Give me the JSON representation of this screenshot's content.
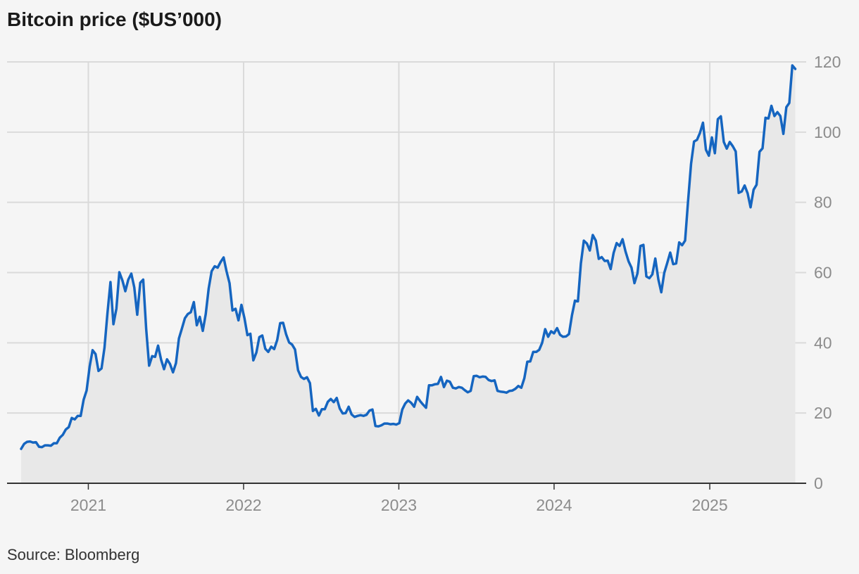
{
  "title": "Bitcoin price ($US’000)",
  "source": "Source: Bloomberg",
  "colors": {
    "line": "#1565c0",
    "area": "#e8e8e8",
    "grid": "#dadada",
    "axis": "#333333",
    "tick": "#8c8c8c",
    "background": "#f5f5f5"
  },
  "chart_data": {
    "type": "area",
    "title": "Bitcoin price ($US’000)",
    "xlabel": "",
    "ylabel": "",
    "ylim": [
      0,
      120
    ],
    "yticks": [
      0,
      20,
      40,
      60,
      80,
      100,
      120
    ],
    "y_axis_side": "right",
    "xticks": [
      "2021",
      "2022",
      "2023",
      "2024",
      "2025"
    ],
    "xlim": [
      "2020-07-27",
      "2025-07-27"
    ],
    "grid": true,
    "series": [
      {
        "x": [
          "2020-07-27",
          "2020-08-03",
          "2020-08-10",
          "2020-08-17",
          "2020-08-24",
          "2020-08-31",
          "2020-09-07",
          "2020-09-14",
          "2020-09-21",
          "2020-09-28",
          "2020-10-05",
          "2020-10-12",
          "2020-10-19",
          "2020-10-26",
          "2020-11-02",
          "2020-11-09",
          "2020-11-16",
          "2020-11-23",
          "2020-11-30",
          "2020-12-07",
          "2020-12-14",
          "2020-12-21",
          "2020-12-28",
          "2021-01-04",
          "2021-01-11",
          "2021-01-18",
          "2021-01-25",
          "2021-02-01",
          "2021-02-08",
          "2021-02-15",
          "2021-02-22",
          "2021-03-01",
          "2021-03-08",
          "2021-03-15",
          "2021-03-22",
          "2021-03-29",
          "2021-04-05",
          "2021-04-12",
          "2021-04-19",
          "2021-04-26",
          "2021-05-03",
          "2021-05-10",
          "2021-05-17",
          "2021-05-24",
          "2021-05-31",
          "2021-06-07",
          "2021-06-14",
          "2021-06-21",
          "2021-06-28",
          "2021-07-05",
          "2021-07-12",
          "2021-07-19",
          "2021-07-26",
          "2021-08-02",
          "2021-08-09",
          "2021-08-16",
          "2021-08-23",
          "2021-08-30",
          "2021-09-06",
          "2021-09-13",
          "2021-09-20",
          "2021-09-27",
          "2021-10-04",
          "2021-10-11",
          "2021-10-18",
          "2021-10-25",
          "2021-11-01",
          "2021-11-08",
          "2021-11-15",
          "2021-11-22",
          "2021-11-29",
          "2021-12-06",
          "2021-12-13",
          "2021-12-20",
          "2021-12-27",
          "2022-01-03",
          "2022-01-10",
          "2022-01-17",
          "2022-01-24",
          "2022-01-31",
          "2022-02-07",
          "2022-02-14",
          "2022-02-21",
          "2022-02-28",
          "2022-03-07",
          "2022-03-14",
          "2022-03-21",
          "2022-03-28",
          "2022-04-04",
          "2022-04-11",
          "2022-04-18",
          "2022-04-25",
          "2022-05-02",
          "2022-05-09",
          "2022-05-16",
          "2022-05-23",
          "2022-05-30",
          "2022-06-06",
          "2022-06-13",
          "2022-06-20",
          "2022-06-27",
          "2022-07-04",
          "2022-07-11",
          "2022-07-18",
          "2022-07-25",
          "2022-08-01",
          "2022-08-08",
          "2022-08-15",
          "2022-08-22",
          "2022-08-29",
          "2022-09-05",
          "2022-09-12",
          "2022-09-19",
          "2022-09-26",
          "2022-10-03",
          "2022-10-10",
          "2022-10-17",
          "2022-10-24",
          "2022-10-31",
          "2022-11-07",
          "2022-11-14",
          "2022-11-21",
          "2022-11-28",
          "2022-12-05",
          "2022-12-12",
          "2022-12-19",
          "2022-12-26",
          "2023-01-02",
          "2023-01-09",
          "2023-01-16",
          "2023-01-23",
          "2023-01-30",
          "2023-02-06",
          "2023-02-13",
          "2023-02-20",
          "2023-02-27",
          "2023-03-06",
          "2023-03-13",
          "2023-03-20",
          "2023-03-27",
          "2023-04-03",
          "2023-04-10",
          "2023-04-17",
          "2023-04-24",
          "2023-05-01",
          "2023-05-08",
          "2023-05-15",
          "2023-05-22",
          "2023-05-29",
          "2023-06-05",
          "2023-06-12",
          "2023-06-19",
          "2023-06-26",
          "2023-07-03",
          "2023-07-10",
          "2023-07-17",
          "2023-07-24",
          "2023-07-31",
          "2023-08-07",
          "2023-08-14",
          "2023-08-21",
          "2023-08-28",
          "2023-09-04",
          "2023-09-11",
          "2023-09-18",
          "2023-09-25",
          "2023-10-02",
          "2023-10-09",
          "2023-10-16",
          "2023-10-23",
          "2023-10-30",
          "2023-11-06",
          "2023-11-13",
          "2023-11-20",
          "2023-11-27",
          "2023-12-04",
          "2023-12-11",
          "2023-12-18",
          "2023-12-25",
          "2024-01-01",
          "2024-01-08",
          "2024-01-15",
          "2024-01-22",
          "2024-01-29",
          "2024-02-05",
          "2024-02-12",
          "2024-02-19",
          "2024-02-26",
          "2024-03-04",
          "2024-03-11",
          "2024-03-18",
          "2024-03-25",
          "2024-04-01",
          "2024-04-08",
          "2024-04-15",
          "2024-04-22",
          "2024-04-29",
          "2024-05-06",
          "2024-05-13",
          "2024-05-20",
          "2024-05-27",
          "2024-06-03",
          "2024-06-10",
          "2024-06-17",
          "2024-06-24",
          "2024-07-01",
          "2024-07-08",
          "2024-07-15",
          "2024-07-22",
          "2024-07-29",
          "2024-08-05",
          "2024-08-12",
          "2024-08-19",
          "2024-08-26",
          "2024-09-02",
          "2024-09-09",
          "2024-09-16",
          "2024-09-23",
          "2024-09-30",
          "2024-10-07",
          "2024-10-14",
          "2024-10-21",
          "2024-10-28",
          "2024-11-04",
          "2024-11-11",
          "2024-11-18",
          "2024-11-25",
          "2024-12-02",
          "2024-12-09",
          "2024-12-16",
          "2024-12-23",
          "2024-12-30",
          "2025-01-06",
          "2025-01-13",
          "2025-01-20",
          "2025-01-27",
          "2025-02-03",
          "2025-02-10",
          "2025-02-17",
          "2025-02-24",
          "2025-03-03",
          "2025-03-10",
          "2025-03-17",
          "2025-03-24",
          "2025-03-31",
          "2025-04-07",
          "2025-04-14",
          "2025-04-21",
          "2025-04-28",
          "2025-05-05",
          "2025-05-12",
          "2025-05-19",
          "2025-05-26",
          "2025-06-02",
          "2025-06-09",
          "2025-06-16",
          "2025-06-23",
          "2025-06-30",
          "2025-07-07",
          "2025-07-14",
          "2025-07-21"
        ],
        "values": [
          9.8,
          11.2,
          11.8,
          11.9,
          11.6,
          11.7,
          10.4,
          10.3,
          10.8,
          10.8,
          10.7,
          11.4,
          11.4,
          13.0,
          13.8,
          15.3,
          16.0,
          18.6,
          18.2,
          19.2,
          19.2,
          23.8,
          26.4,
          33.2,
          37.9,
          36.8,
          32.0,
          32.7,
          38.6,
          48.4,
          57.3,
          45.3,
          49.7,
          60.1,
          57.8,
          54.7,
          58.0,
          59.7,
          55.8,
          48.0,
          57.1,
          58.0,
          44.0,
          33.5,
          36.2,
          36.0,
          39.2,
          35.2,
          32.5,
          35.3,
          34.0,
          31.6,
          34.2,
          41.2,
          44.1,
          47.0,
          48.2,
          48.7,
          51.6,
          45.0,
          47.4,
          43.4,
          48.2,
          55.5,
          60.4,
          61.8,
          61.4,
          63.0,
          64.3,
          60.3,
          57.0,
          49.2,
          49.7,
          46.4,
          50.8,
          47.0,
          42.2,
          42.6,
          35.0,
          37.2,
          41.6,
          42.1,
          38.3,
          37.4,
          38.9,
          38.2,
          40.8,
          45.6,
          45.7,
          42.4,
          40.1,
          39.5,
          38.1,
          32.2,
          30.3,
          29.7,
          30.2,
          28.5,
          20.6,
          21.2,
          19.3,
          21.1,
          21.1,
          23.2,
          24.0,
          23.1,
          24.3,
          21.3,
          19.9,
          20.0,
          21.8,
          19.6,
          18.9,
          19.2,
          19.4,
          19.2,
          19.5,
          20.7,
          21.0,
          16.3,
          16.2,
          16.5,
          17.0,
          17.0,
          16.8,
          16.9,
          16.7,
          17.1,
          21.0,
          22.7,
          23.6,
          22.9,
          21.8,
          24.6,
          23.4,
          22.4,
          21.5,
          27.9,
          27.9,
          28.2,
          28.3,
          30.3,
          27.4,
          29.2,
          28.9,
          27.2,
          27.0,
          27.4,
          27.2,
          26.5,
          25.9,
          26.3,
          30.5,
          30.6,
          30.2,
          30.4,
          30.3,
          29.4,
          29.1,
          29.3,
          26.3,
          26.1,
          26.0,
          25.8,
          26.3,
          26.4,
          26.9,
          27.7,
          27.2,
          29.9,
          34.6,
          34.7,
          37.4,
          37.4,
          38.0,
          40.0,
          43.9,
          41.7,
          43.3,
          42.7,
          44.2,
          42.3,
          41.7,
          41.8,
          42.5,
          47.8,
          52.0,
          51.8,
          62.6,
          69.1,
          68.3,
          66.3,
          70.7,
          69.1,
          63.9,
          64.4,
          63.3,
          63.4,
          61.0,
          65.6,
          68.4,
          67.6,
          69.5,
          66.0,
          63.2,
          61.4,
          57.0,
          59.8,
          67.6,
          67.9,
          58.9,
          58.4,
          59.5,
          64.0,
          58.1,
          54.4,
          59.9,
          62.7,
          65.7,
          62.4,
          62.6,
          68.6,
          67.8,
          69.1,
          80.3,
          91.0,
          97.3,
          97.8,
          99.8,
          102.7,
          95.0,
          93.3,
          98.5,
          94.0,
          103.7,
          104.5,
          97.2,
          95.3,
          97.2,
          96.0,
          94.5,
          82.7,
          83.1,
          84.8,
          82.6,
          78.6,
          83.6,
          85.0,
          94.4,
          95.4,
          104.1,
          103.9,
          107.5,
          104.6,
          105.7,
          104.6,
          99.5,
          107.1,
          108.3,
          119.0,
          118.0
        ]
      }
    ]
  }
}
